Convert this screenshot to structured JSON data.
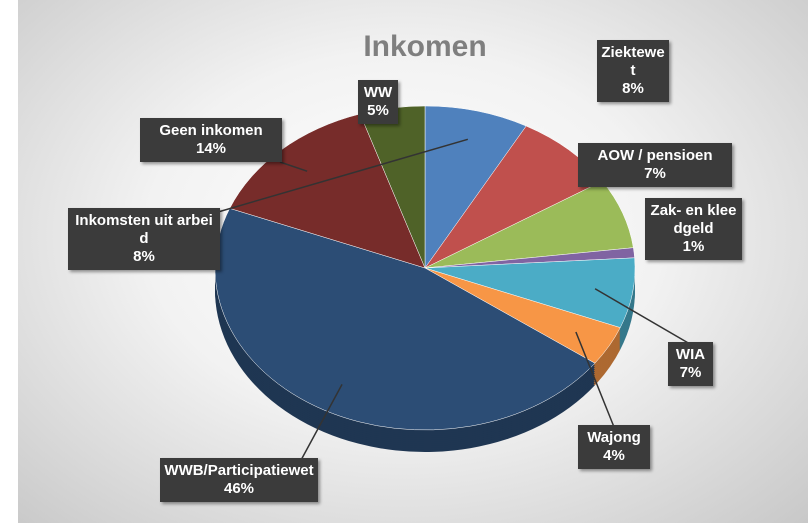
{
  "chart_data": {
    "type": "pie",
    "title": "Inkomen",
    "categories": [
      "Inkomsten uit arbeid",
      "Ziektewet",
      "AOW / pensioen",
      "Zak- en kleedgeld",
      "WIA",
      "Wajong",
      "WWB/Participatiewet",
      "Geen inkomen",
      "WW"
    ],
    "values": [
      8,
      8,
      7,
      1,
      7,
      4,
      46,
      14,
      5
    ],
    "value_labels": [
      "8%",
      "8%",
      "7%",
      "1%",
      "7%",
      "4%",
      "46%",
      "14%",
      "5%"
    ],
    "colors": [
      "#4f81bd",
      "#c0504d",
      "#9bbb59",
      "#8064a2",
      "#4bacc6",
      "#f79646",
      "#2c4d75",
      "#772c2a",
      "#4f6228"
    ]
  }
}
